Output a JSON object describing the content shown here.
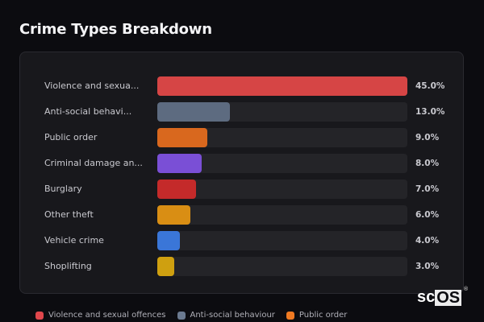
{
  "header": {
    "title": "Crime Types Breakdown"
  },
  "chart_data": {
    "type": "bar",
    "orientation": "horizontal",
    "title": "Crime Types Breakdown",
    "categories": [
      "Violence and sexual offences",
      "Anti-social behaviour",
      "Public order",
      "Criminal damage and arson",
      "Burglary",
      "Other theft",
      "Vehicle crime",
      "Shoplifting"
    ],
    "display_labels": [
      "Violence and sexua...",
      "Anti-social behavi...",
      "Public order",
      "Criminal damage an...",
      "Burglary",
      "Other theft",
      "Vehicle crime",
      "Shoplifting"
    ],
    "values": [
      45.0,
      13.0,
      9.0,
      8.0,
      7.0,
      6.0,
      4.0,
      3.0
    ],
    "value_labels": [
      "45.0%",
      "13.0%",
      "9.0%",
      "8.0%",
      "7.0%",
      "6.0%",
      "4.0%",
      "3.0%"
    ],
    "colors": [
      "#d64545",
      "#5d6b80",
      "#d9681e",
      "#7a4fd6",
      "#c42a2a",
      "#d98e14",
      "#3a76d8",
      "#cfa010"
    ],
    "xlim": [
      0,
      45
    ],
    "unit": "%",
    "legend_position": "bottom"
  },
  "rows": [
    {
      "label": "Violence and sexua...",
      "pct": "45.0%",
      "value": 45.0,
      "color": "#d64545"
    },
    {
      "label": "Anti-social behavi...",
      "pct": "13.0%",
      "value": 13.0,
      "color": "#5d6b80"
    },
    {
      "label": "Public order",
      "pct": "9.0%",
      "value": 9.0,
      "color": "#d9681e"
    },
    {
      "label": "Criminal damage an...",
      "pct": "8.0%",
      "value": 8.0,
      "color": "#7a4fd6"
    },
    {
      "label": "Burglary",
      "pct": "7.0%",
      "value": 7.0,
      "color": "#c42a2a"
    },
    {
      "label": "Other theft",
      "pct": "6.0%",
      "value": 6.0,
      "color": "#d98e14"
    },
    {
      "label": "Vehicle crime",
      "pct": "4.0%",
      "value": 4.0,
      "color": "#3a76d8"
    },
    {
      "label": "Shoplifting",
      "pct": "3.0%",
      "value": 3.0,
      "color": "#cfa010"
    }
  ],
  "legend": [
    {
      "label": "Violence and sexual offences",
      "color": "#e0474c"
    },
    {
      "label": "Anti-social behaviour",
      "color": "#6b7a90"
    },
    {
      "label": "Public order",
      "color": "#f07a22"
    }
  ],
  "logo": {
    "text_sc": "sc",
    "text_os": "OS",
    "reg": "®"
  }
}
